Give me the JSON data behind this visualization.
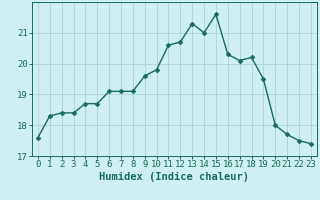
{
  "x": [
    0,
    1,
    2,
    3,
    4,
    5,
    6,
    7,
    8,
    9,
    10,
    11,
    12,
    13,
    14,
    15,
    16,
    17,
    18,
    19,
    20,
    21,
    22,
    23
  ],
  "y": [
    17.6,
    18.3,
    18.4,
    18.4,
    18.7,
    18.7,
    19.1,
    19.1,
    19.1,
    19.6,
    19.8,
    20.6,
    20.7,
    21.3,
    21.0,
    21.6,
    20.3,
    20.1,
    20.2,
    19.5,
    18.0,
    17.7,
    17.5,
    17.4
  ],
  "bg_color": "#cff0f0",
  "grid_color": "#b0d8d8",
  "line_color": "#1a6b5a",
  "marker_color": "#1a6b5a",
  "xlabel": "Humidex (Indice chaleur)",
  "ylim": [
    17,
    22
  ],
  "xlim": [
    -0.5,
    23.5
  ],
  "yticks": [
    17,
    18,
    19,
    20,
    21
  ],
  "xticks": [
    0,
    1,
    2,
    3,
    4,
    5,
    6,
    7,
    8,
    9,
    10,
    11,
    12,
    13,
    14,
    15,
    16,
    17,
    18,
    19,
    20,
    21,
    22,
    23
  ],
  "tick_label_fontsize": 6.5,
  "xlabel_fontsize": 7.5,
  "line_width": 1.0,
  "marker_size": 2.5
}
